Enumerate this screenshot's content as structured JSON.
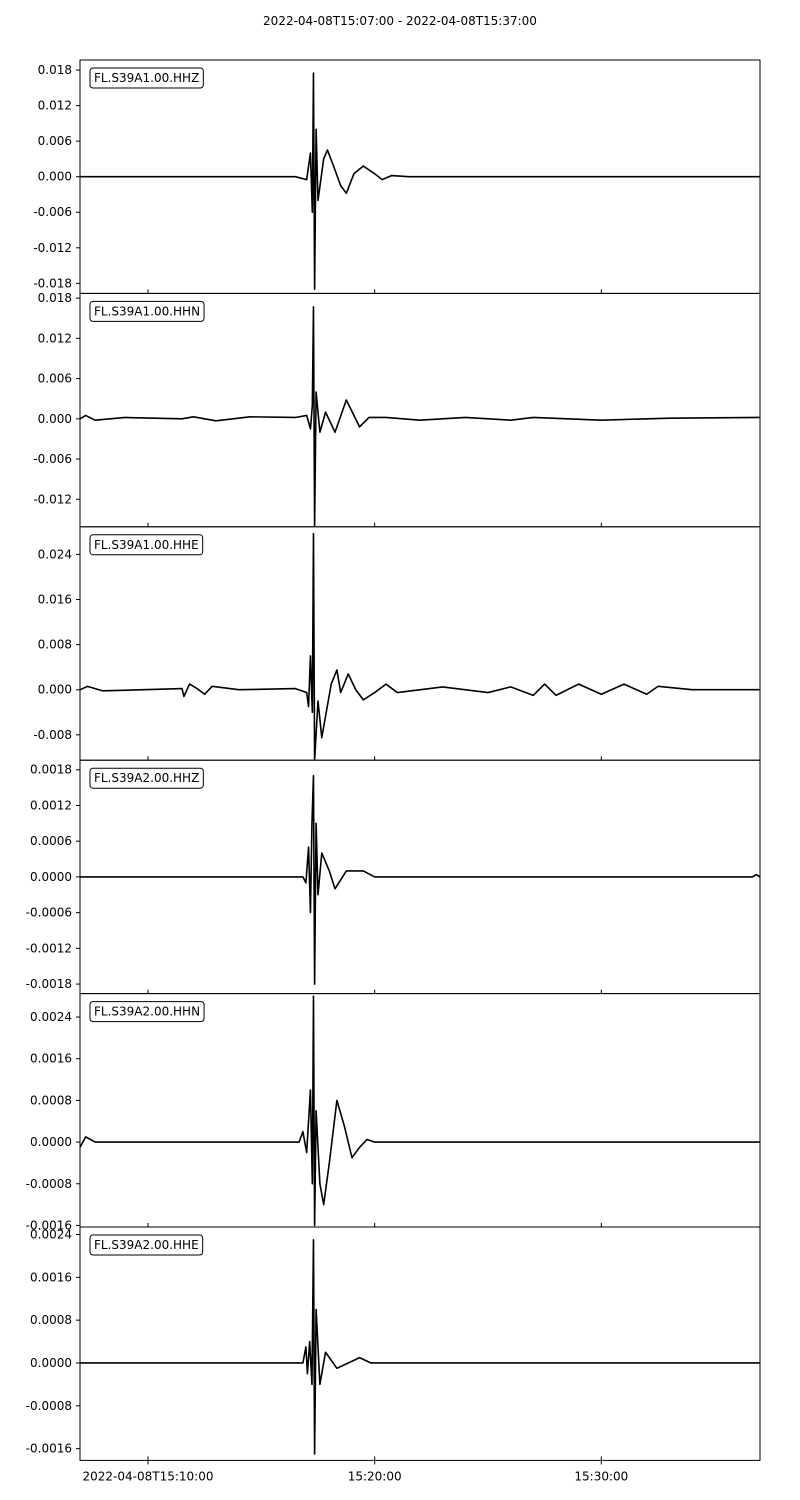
{
  "chart_data": {
    "type": "line",
    "title": "2022-04-08T15:07:00  -  2022-04-08T15:37:00",
    "x_time": {
      "start": "2022-04-08T15:07:00",
      "end": "2022-04-08T15:37:00",
      "ticks": [
        {
          "t": "2022-04-08T15:10:00",
          "label": "2022-04-08T15:10:00"
        },
        {
          "t": "2022-04-08T15:20:00",
          "label": "15:20:00"
        },
        {
          "t": "2022-04-08T15:30:00",
          "label": "15:30:00"
        }
      ]
    },
    "grid": false,
    "line_color": "#000000",
    "traces": [
      {
        "label": "FL.S39A1.00.HHZ",
        "ylim": [
          -0.0197,
          0.0197
        ],
        "yticks": [
          "0.018",
          "0.012",
          "0.006",
          "0.000",
          "-0.006",
          "-0.012",
          "-0.018"
        ],
        "ytick_values": [
          0.018,
          0.012,
          0.006,
          0.0,
          -0.006,
          -0.012,
          -0.018
        ],
        "points": [
          [
            "2022-04-08T15:07:00",
            0.0
          ],
          [
            "2022-04-08T15:14:00",
            0.0
          ],
          [
            "2022-04-08T15:16:30",
            0.0
          ],
          [
            "2022-04-08T15:17:00",
            -0.0005
          ],
          [
            "2022-04-08T15:17:10",
            0.004
          ],
          [
            "2022-04-08T15:17:15",
            -0.006
          ],
          [
            "2022-04-08T15:17:18",
            0.0175
          ],
          [
            "2022-04-08T15:17:21",
            -0.019
          ],
          [
            "2022-04-08T15:17:25",
            0.008
          ],
          [
            "2022-04-08T15:17:30",
            -0.004
          ],
          [
            "2022-04-08T15:17:45",
            0.003
          ],
          [
            "2022-04-08T15:17:55",
            0.0045
          ],
          [
            "2022-04-08T15:18:10",
            0.002
          ],
          [
            "2022-04-08T15:18:30",
            -0.0015
          ],
          [
            "2022-04-08T15:18:45",
            -0.0028
          ],
          [
            "2022-04-08T15:19:05",
            0.0005
          ],
          [
            "2022-04-08T15:19:30",
            0.0018
          ],
          [
            "2022-04-08T15:20:00",
            0.0005
          ],
          [
            "2022-04-08T15:20:20",
            -0.0005
          ],
          [
            "2022-04-08T15:20:45",
            0.0002
          ],
          [
            "2022-04-08T15:21:30",
            0.0
          ],
          [
            "2022-04-08T15:37:00",
            0.0
          ]
        ]
      },
      {
        "label": "FL.S39A1.00.HHN",
        "ylim": [
          -0.0161,
          0.0187
        ],
        "yticks": [
          "0.018",
          "0.012",
          "0.006",
          "0.000",
          "-0.006",
          "-0.012"
        ],
        "ytick_values": [
          0.018,
          0.012,
          0.006,
          0.0,
          -0.006,
          -0.012
        ],
        "points": [
          [
            "2022-04-08T15:07:00",
            0.0
          ],
          [
            "2022-04-08T15:07:15",
            0.0005
          ],
          [
            "2022-04-08T15:07:40",
            -0.0002
          ],
          [
            "2022-04-08T15:09:00",
            0.0002
          ],
          [
            "2022-04-08T15:11:30",
            0.0
          ],
          [
            "2022-04-08T15:12:00",
            0.0003
          ],
          [
            "2022-04-08T15:13:00",
            -0.0003
          ],
          [
            "2022-04-08T15:14:30",
            0.0003
          ],
          [
            "2022-04-08T15:16:30",
            0.0002
          ],
          [
            "2022-04-08T15:17:00",
            0.0005
          ],
          [
            "2022-04-08T15:17:10",
            -0.0015
          ],
          [
            "2022-04-08T15:17:15",
            0.002
          ],
          [
            "2022-04-08T15:17:18",
            0.0167
          ],
          [
            "2022-04-08T15:17:21",
            -0.016
          ],
          [
            "2022-04-08T15:17:25",
            0.004
          ],
          [
            "2022-04-08T15:17:35",
            -0.002
          ],
          [
            "2022-04-08T15:17:50",
            0.001
          ],
          [
            "2022-04-08T15:18:15",
            -0.002
          ],
          [
            "2022-04-08T15:18:45",
            0.0028
          ],
          [
            "2022-04-08T15:19:20",
            -0.0012
          ],
          [
            "2022-04-08T15:19:45",
            0.0002
          ],
          [
            "2022-04-08T15:20:30",
            0.0002
          ],
          [
            "2022-04-08T15:22:00",
            -0.0002
          ],
          [
            "2022-04-08T15:24:00",
            0.0002
          ],
          [
            "2022-04-08T15:26:00",
            -0.0002
          ],
          [
            "2022-04-08T15:27:00",
            0.0002
          ],
          [
            "2022-04-08T15:30:00",
            -0.0002
          ],
          [
            "2022-04-08T15:33:00",
            0.0001
          ],
          [
            "2022-04-08T15:37:00",
            0.0002
          ]
        ]
      },
      {
        "label": "FL.S39A1.00.HHE",
        "ylim": [
          -0.0125,
          0.0289
        ],
        "yticks": [
          "0.024",
          "0.016",
          "0.008",
          "0.000",
          "-0.008"
        ],
        "ytick_values": [
          0.024,
          0.016,
          0.008,
          0.0,
          -0.008
        ],
        "points": [
          [
            "2022-04-08T15:07:00",
            0.0
          ],
          [
            "2022-04-08T15:07:20",
            0.0006
          ],
          [
            "2022-04-08T15:08:00",
            -0.0002
          ],
          [
            "2022-04-08T15:11:30",
            0.0002
          ],
          [
            "2022-04-08T15:11:35",
            -0.0012
          ],
          [
            "2022-04-08T15:11:50",
            0.001
          ],
          [
            "2022-04-08T15:12:10",
            0.0002
          ],
          [
            "2022-04-08T15:12:30",
            -0.0008
          ],
          [
            "2022-04-08T15:12:50",
            0.0006
          ],
          [
            "2022-04-08T15:14:00",
            0.0
          ],
          [
            "2022-04-08T15:16:30",
            0.0002
          ],
          [
            "2022-04-08T15:17:00",
            -0.0005
          ],
          [
            "2022-04-08T15:17:05",
            -0.003
          ],
          [
            "2022-04-08T15:17:10",
            0.006
          ],
          [
            "2022-04-08T15:17:15",
            -0.004
          ],
          [
            "2022-04-08T15:17:18",
            0.0277
          ],
          [
            "2022-04-08T15:17:21",
            -0.0125
          ],
          [
            "2022-04-08T15:17:30",
            -0.002
          ],
          [
            "2022-04-08T15:17:40",
            -0.0085
          ],
          [
            "2022-04-08T15:18:05",
            0.001
          ],
          [
            "2022-04-08T15:18:20",
            0.0035
          ],
          [
            "2022-04-08T15:18:30",
            -0.0005
          ],
          [
            "2022-04-08T15:18:50",
            0.0028
          ],
          [
            "2022-04-08T15:19:10",
            0.0
          ],
          [
            "2022-04-08T15:19:30",
            -0.0018
          ],
          [
            "2022-04-08T15:20:00",
            -0.0005
          ],
          [
            "2022-04-08T15:20:30",
            0.001
          ],
          [
            "2022-04-08T15:21:00",
            -0.0005
          ],
          [
            "2022-04-08T15:23:00",
            0.0005
          ],
          [
            "2022-04-08T15:25:00",
            -0.0005
          ],
          [
            "2022-04-08T15:26:00",
            0.0005
          ],
          [
            "2022-04-08T15:27:00",
            -0.001
          ],
          [
            "2022-04-08T15:27:30",
            0.001
          ],
          [
            "2022-04-08T15:28:00",
            -0.001
          ],
          [
            "2022-04-08T15:29:00",
            0.001
          ],
          [
            "2022-04-08T15:30:00",
            -0.0008
          ],
          [
            "2022-04-08T15:31:00",
            0.001
          ],
          [
            "2022-04-08T15:32:00",
            -0.0008
          ],
          [
            "2022-04-08T15:32:30",
            0.0006
          ],
          [
            "2022-04-08T15:34:00",
            0.0
          ],
          [
            "2022-04-08T15:37:00",
            0.0
          ]
        ]
      },
      {
        "label": "FL.S39A2.00.HHZ",
        "ylim": [
          -0.00196,
          0.00196
        ],
        "yticks": [
          "0.0018",
          "0.0012",
          "0.0006",
          "0.0000",
          "-0.0006",
          "-0.0012",
          "-0.0018"
        ],
        "ytick_values": [
          0.0018,
          0.0012,
          0.0006,
          0.0,
          -0.0006,
          -0.0012,
          -0.0018
        ],
        "points": [
          [
            "2022-04-08T15:07:00",
            0.0
          ],
          [
            "2022-04-08T15:16:50",
            0.0
          ],
          [
            "2022-04-08T15:16:58",
            -0.0001
          ],
          [
            "2022-04-08T15:17:05",
            0.0005
          ],
          [
            "2022-04-08T15:17:10",
            -0.0006
          ],
          [
            "2022-04-08T15:17:14",
            0.0009
          ],
          [
            "2022-04-08T15:17:18",
            0.0017
          ],
          [
            "2022-04-08T15:17:21",
            -0.0018
          ],
          [
            "2022-04-08T15:17:25",
            0.0009
          ],
          [
            "2022-04-08T15:17:30",
            -0.0003
          ],
          [
            "2022-04-08T15:17:40",
            0.0004
          ],
          [
            "2022-04-08T15:18:00",
            0.0001
          ],
          [
            "2022-04-08T15:18:15",
            -0.0002
          ],
          [
            "2022-04-08T15:18:45",
            0.0001
          ],
          [
            "2022-04-08T15:19:30",
            0.0001
          ],
          [
            "2022-04-08T15:20:00",
            0.0
          ],
          [
            "2022-04-08T15:36:40",
            0.0
          ],
          [
            "2022-04-08T15:36:50",
            4e-05
          ],
          [
            "2022-04-08T15:37:00",
            0.0
          ]
        ]
      },
      {
        "label": "FL.S39A2.00.HHN",
        "ylim": [
          -0.00163,
          0.00285
        ],
        "yticks": [
          "0.0024",
          "0.0016",
          "0.0008",
          "0.0000",
          "-0.0008",
          "-0.0016"
        ],
        "ytick_values": [
          0.0024,
          0.0016,
          0.0008,
          0.0,
          -0.0008,
          -0.0016
        ],
        "points": [
          [
            "2022-04-08T15:07:00",
            -0.0001
          ],
          [
            "2022-04-08T15:07:15",
            0.0001
          ],
          [
            "2022-04-08T15:07:40",
            0.0
          ],
          [
            "2022-04-08T15:16:40",
            0.0
          ],
          [
            "2022-04-08T15:16:50",
            0.0002
          ],
          [
            "2022-04-08T15:17:00",
            -0.0002
          ],
          [
            "2022-04-08T15:17:10",
            0.001
          ],
          [
            "2022-04-08T15:17:15",
            -0.0008
          ],
          [
            "2022-04-08T15:17:18",
            0.0028
          ],
          [
            "2022-04-08T15:17:21",
            -0.0016
          ],
          [
            "2022-04-08T15:17:25",
            0.0006
          ],
          [
            "2022-04-08T15:17:35",
            -0.0008
          ],
          [
            "2022-04-08T15:17:45",
            -0.0012
          ],
          [
            "2022-04-08T15:18:00",
            -0.0004
          ],
          [
            "2022-04-08T15:18:20",
            0.0008
          ],
          [
            "2022-04-08T15:18:40",
            0.0003
          ],
          [
            "2022-04-08T15:19:00",
            -0.0003
          ],
          [
            "2022-04-08T15:19:20",
            -0.0001
          ],
          [
            "2022-04-08T15:19:40",
            5e-05
          ],
          [
            "2022-04-08T15:20:00",
            0.0
          ],
          [
            "2022-04-08T15:37:00",
            0.0
          ]
        ]
      },
      {
        "label": "FL.S39A2.00.HHE",
        "ylim": [
          -0.00182,
          0.00254
        ],
        "yticks": [
          "0.0024",
          "0.0016",
          "0.0008",
          "0.0000",
          "-0.0008",
          "-0.0016"
        ],
        "ytick_values": [
          0.0024,
          0.0016,
          0.0008,
          0.0,
          -0.0008,
          -0.0016
        ],
        "points": [
          [
            "2022-04-08T15:07:00",
            0.0
          ],
          [
            "2022-04-08T15:16:50",
            0.0
          ],
          [
            "2022-04-08T15:16:58",
            0.0003
          ],
          [
            "2022-04-08T15:17:02",
            -0.0002
          ],
          [
            "2022-04-08T15:17:08",
            0.0004
          ],
          [
            "2022-04-08T15:17:14",
            -0.0004
          ],
          [
            "2022-04-08T15:17:18",
            0.0023
          ],
          [
            "2022-04-08T15:17:21",
            -0.0017
          ],
          [
            "2022-04-08T15:17:25",
            0.001
          ],
          [
            "2022-04-08T15:17:35",
            -0.0004
          ],
          [
            "2022-04-08T15:17:50",
            0.0002
          ],
          [
            "2022-04-08T15:18:20",
            -0.0001
          ],
          [
            "2022-04-08T15:18:50",
            0.0
          ],
          [
            "2022-04-08T15:19:20",
            0.0001
          ],
          [
            "2022-04-08T15:19:50",
            0.0
          ],
          [
            "2022-04-08T15:37:00",
            0.0
          ]
        ]
      }
    ]
  }
}
